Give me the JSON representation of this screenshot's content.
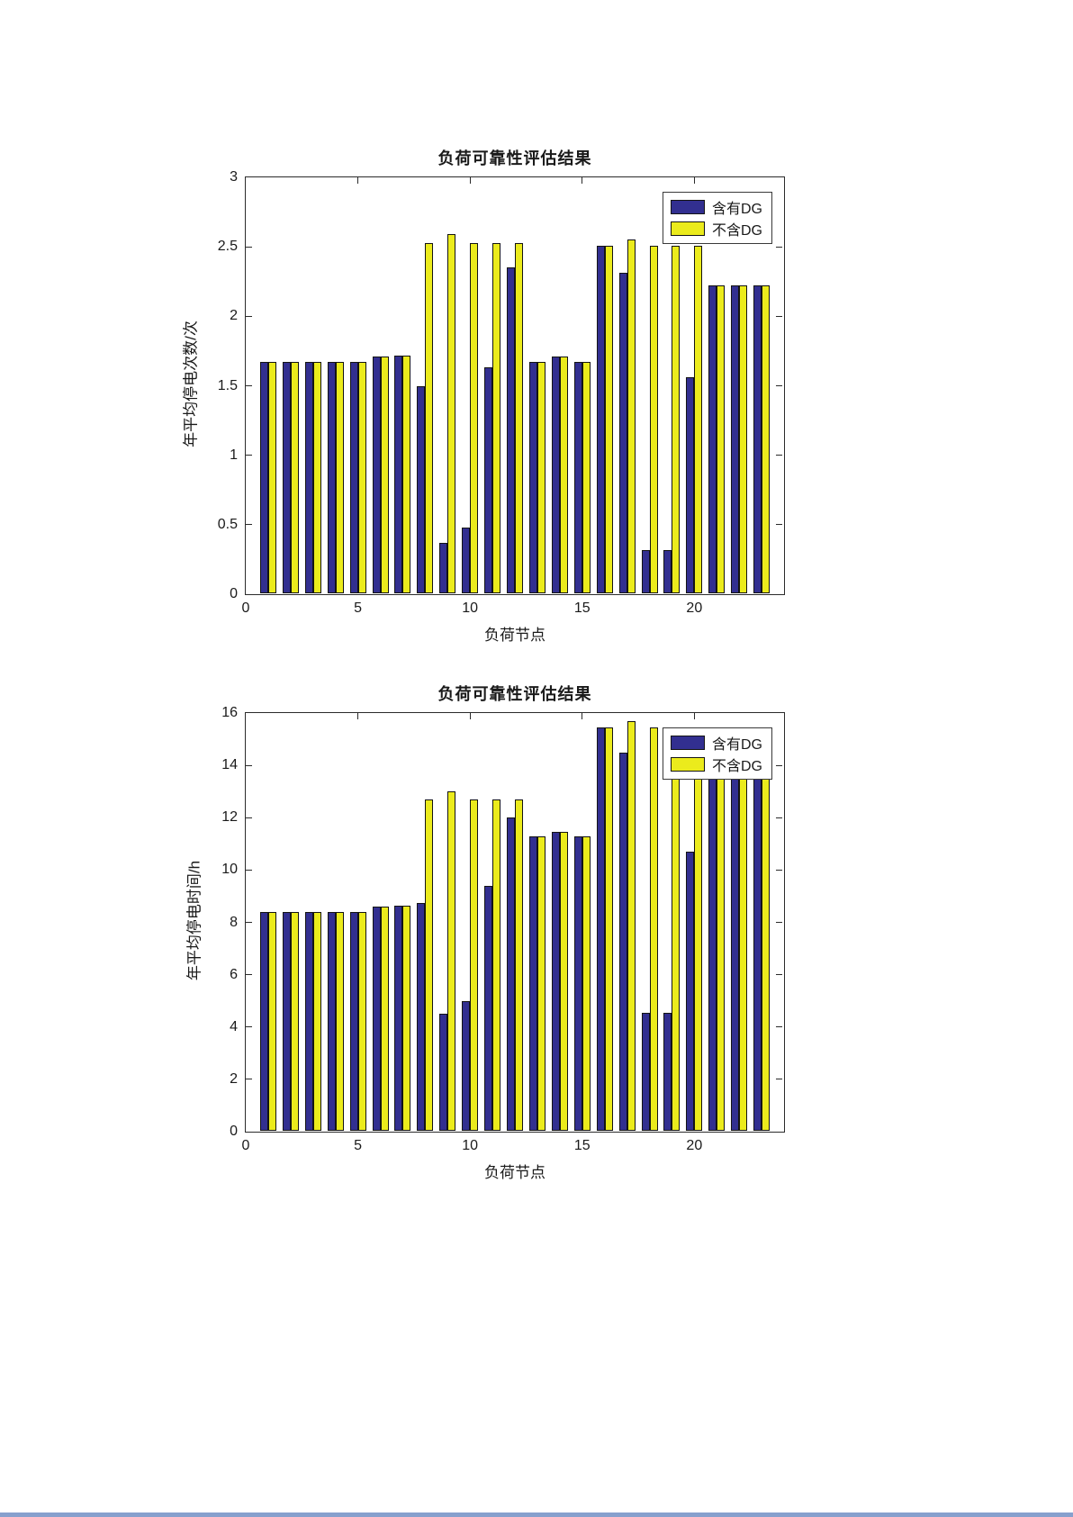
{
  "colors": {
    "series1": "#322f90",
    "series2": "#ebeb1c",
    "bar_edge": "#141414",
    "axis": "#2b2b2b",
    "window_edge_strip": "#87a0cd"
  },
  "chart_data": [
    {
      "type": "bar",
      "title": "负荷可靠性评估结果",
      "xlabel": "负荷节点",
      "ylabel": "年平均停电次数/次",
      "xlim": [
        0,
        24
      ],
      "ylim": [
        0,
        3
      ],
      "xticks": [
        0,
        5,
        10,
        15,
        20
      ],
      "yticks": [
        0,
        0.5,
        1,
        1.5,
        2,
        2.5,
        3
      ],
      "grid": false,
      "legend_position": "northeast",
      "categories": [
        1,
        2,
        3,
        4,
        5,
        6,
        7,
        8,
        9,
        10,
        11,
        12,
        13,
        14,
        15,
        16,
        17,
        18,
        19,
        20,
        21,
        22,
        23
      ],
      "series": [
        {
          "name": "含有DG",
          "values": [
            1.67,
            1.67,
            1.67,
            1.67,
            1.67,
            1.71,
            1.72,
            1.5,
            0.37,
            0.48,
            1.63,
            2.35,
            1.67,
            1.71,
            1.67,
            2.51,
            2.31,
            0.32,
            0.32,
            1.56,
            2.22,
            2.22,
            2.22
          ]
        },
        {
          "name": "不含DG",
          "values": [
            1.67,
            1.67,
            1.67,
            1.67,
            1.67,
            1.71,
            1.72,
            2.53,
            2.59,
            2.53,
            2.53,
            2.53,
            1.67,
            1.71,
            1.67,
            2.51,
            2.55,
            2.51,
            2.51,
            2.51,
            2.22,
            2.22,
            2.22
          ]
        }
      ]
    },
    {
      "type": "bar",
      "title": "负荷可靠性评估结果",
      "xlabel": "负荷节点",
      "ylabel": "年平均停电时间/h",
      "xlim": [
        0,
        24
      ],
      "ylim": [
        0,
        16
      ],
      "xticks": [
        0,
        5,
        10,
        15,
        20
      ],
      "yticks": [
        0,
        2,
        4,
        6,
        8,
        10,
        12,
        14,
        16
      ],
      "grid": false,
      "legend_position": "northeast",
      "categories": [
        1,
        2,
        3,
        4,
        5,
        6,
        7,
        8,
        9,
        10,
        11,
        12,
        13,
        14,
        15,
        16,
        17,
        18,
        19,
        20,
        21,
        22,
        23
      ],
      "series": [
        {
          "name": "含有DG",
          "values": [
            8.4,
            8.4,
            8.4,
            8.4,
            8.4,
            8.6,
            8.65,
            8.75,
            4.5,
            5.0,
            9.4,
            12.0,
            11.3,
            11.45,
            11.3,
            15.45,
            14.5,
            4.55,
            4.55,
            10.7,
            13.8,
            13.8,
            13.8
          ]
        },
        {
          "name": "不含DG",
          "values": [
            8.4,
            8.4,
            8.4,
            8.4,
            8.4,
            8.6,
            8.65,
            12.7,
            13.0,
            12.7,
            12.7,
            12.7,
            11.3,
            11.45,
            11.3,
            15.45,
            15.7,
            15.45,
            15.45,
            15.45,
            13.8,
            13.8,
            13.8
          ]
        }
      ]
    }
  ]
}
